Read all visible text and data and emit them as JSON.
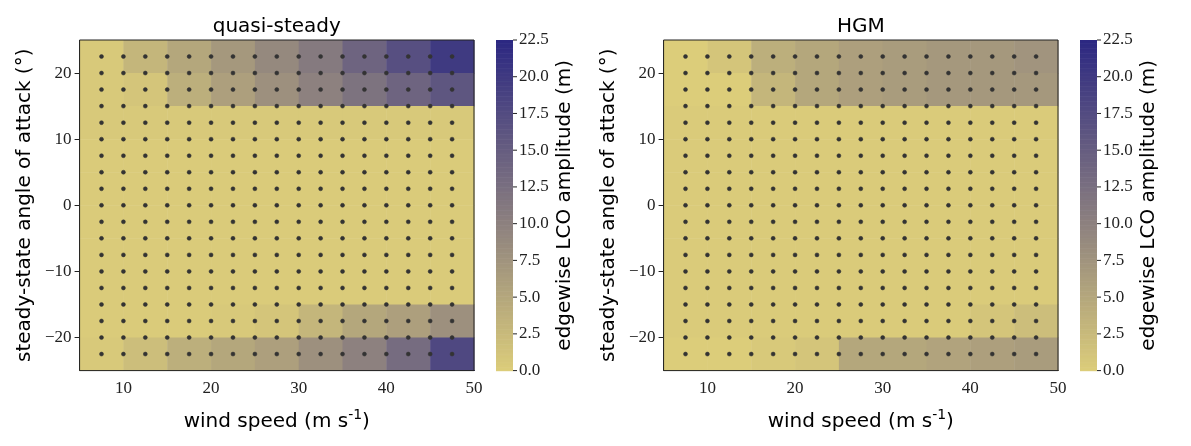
{
  "chart_data": [
    {
      "type": "heatmap",
      "title": "quasi-steady",
      "xlabel": "wind speed (m s$^{-1}$)",
      "ylabel": "steady-state angle of attack (°)",
      "clabel": "edgewise LCO amplitude (m)",
      "x": [
        7.5,
        12.5,
        17.5,
        22.5,
        27.5,
        32.5,
        37.5,
        42.5,
        47.5
      ],
      "y": [
        22.5,
        17.5,
        12.5,
        7.5,
        2.5,
        -2.5,
        -7.5,
        -12.5,
        -17.5,
        -22.5
      ],
      "xlim": [
        5,
        50
      ],
      "xticks": [
        10,
        20,
        30,
        40,
        50
      ],
      "ylim": [
        -25,
        25
      ],
      "yticks": [
        -20,
        -10,
        0,
        10,
        20
      ],
      "cells": [
        [
          0.5,
          3,
          5,
          7,
          9,
          11,
          14,
          17,
          20
        ],
        [
          0.5,
          1,
          4,
          6,
          8,
          10,
          12,
          14,
          16
        ],
        [
          0.5,
          0.5,
          0.5,
          0.5,
          0.5,
          0.5,
          0.5,
          0.5,
          0.5
        ],
        [
          0.3,
          0.3,
          0.3,
          0.3,
          0.3,
          0.3,
          0.3,
          0.3,
          0.3
        ],
        [
          0.3,
          0.3,
          0.3,
          0.3,
          0.3,
          0.3,
          0.3,
          0.3,
          0.3
        ],
        [
          0.3,
          0.3,
          0.3,
          0.3,
          0.3,
          0.3,
          0.3,
          0.3,
          0.3
        ],
        [
          0.3,
          0.3,
          0.3,
          0.3,
          0.3,
          0.3,
          0.3,
          0.3,
          0.3
        ],
        [
          0.3,
          0.3,
          0.3,
          0.3,
          0.3,
          0.3,
          0.3,
          0.3,
          0.3
        ],
        [
          0.3,
          0.3,
          0.3,
          0.5,
          1,
          3,
          5,
          6,
          8
        ],
        [
          0.5,
          2,
          4,
          5,
          6,
          8,
          10,
          13,
          18
        ]
      ],
      "clim": [
        0,
        22.5
      ],
      "cticks": [
        {
          "value": 0,
          "label": "0.0"
        },
        {
          "value": 2.5,
          "label": "2.5"
        },
        {
          "value": 5,
          "label": "5.0"
        },
        {
          "value": 7.5,
          "label": "7.5"
        },
        {
          "value": 10,
          "label": "10.0"
        },
        {
          "value": 12.5,
          "label": "12.5"
        },
        {
          "value": 15,
          "label": "15.0"
        },
        {
          "value": 17.5,
          "label": "17.5"
        },
        {
          "value": 20,
          "label": "20.0"
        },
        {
          "value": 22.5,
          "label": "22.5"
        }
      ],
      "marker": "circle",
      "series": [
        {
          "type": "scatter",
          "color": "#333333",
          "x": [
            7.5,
            10,
            12.5,
            15,
            17.5,
            20,
            22.5,
            25,
            27.5,
            30,
            32.5,
            35,
            37.5,
            40,
            42.5,
            45,
            47.5,
            7.5,
            10,
            12.5,
            15,
            17.5,
            20,
            22.5,
            25,
            27.5,
            30,
            32.5,
            35,
            37.5,
            40,
            42.5,
            45,
            47.5,
            7.5,
            10,
            12.5,
            15,
            17.5,
            20,
            22.5,
            25,
            27.5,
            30,
            32.5,
            35,
            37.5,
            40,
            42.5,
            45,
            47.5,
            7.5,
            10,
            12.5,
            15,
            17.5,
            20,
            22.5,
            25,
            27.5,
            30,
            32.5,
            35,
            37.5,
            40,
            42.5,
            45,
            47.5,
            7.5,
            10,
            12.5,
            15,
            17.5,
            20,
            22.5,
            25,
            27.5,
            30,
            32.5,
            35,
            37.5,
            40,
            42.5,
            45,
            47.5,
            7.5,
            10,
            12.5,
            15,
            17.5,
            20,
            22.5,
            25,
            27.5,
            30,
            32.5,
            35,
            37.5,
            40,
            42.5,
            45,
            47.5,
            7.5,
            10,
            12.5,
            15,
            17.5,
            20,
            22.5,
            25,
            27.5,
            30,
            32.5,
            35,
            37.5,
            40,
            42.5,
            45,
            47.5,
            7.5,
            10,
            12.5,
            15,
            17.5,
            20,
            22.5,
            25,
            27.5,
            30,
            32.5,
            35,
            37.5,
            40,
            42.5,
            45,
            47.5,
            7.5,
            10,
            12.5,
            15,
            17.5,
            20,
            22.5,
            25,
            27.5,
            30,
            32.5,
            35,
            37.5,
            40,
            42.5,
            45,
            47.5,
            7.5,
            10,
            12.5,
            15,
            17.5,
            20,
            22.5,
            25,
            27.5,
            30,
            32.5,
            35,
            37.5,
            40,
            42.5,
            45,
            47.5,
            7.5,
            10,
            12.5,
            15,
            17.5,
            20,
            22.5,
            25,
            27.5,
            30,
            32.5,
            35,
            37.5,
            40,
            42.5,
            45,
            47.5,
            7.5,
            10,
            12.5,
            15,
            17.5,
            20,
            22.5,
            25,
            27.5,
            30,
            32.5,
            35,
            37.5,
            40,
            42.5,
            45,
            47.5,
            7.5,
            10,
            12.5,
            15,
            17.5,
            20,
            22.5,
            25,
            27.5,
            30,
            32.5,
            35,
            37.5,
            40,
            42.5,
            45,
            47.5,
            7.5,
            10,
            12.5,
            15,
            17.5,
            20,
            22.5,
            25,
            27.5,
            30,
            32.5,
            35,
            37.5,
            40,
            42.5,
            45,
            47.5,
            7.5,
            10,
            12.5,
            15,
            17.5,
            20,
            22.5,
            25,
            27.5,
            30,
            32.5,
            35,
            37.5,
            40,
            42.5,
            45,
            47.5,
            7.5,
            10,
            12.5,
            15,
            17.5,
            20,
            22.5,
            25,
            27.5,
            30,
            32.5,
            35,
            37.5,
            40,
            42.5,
            45,
            47.5,
            7.5,
            10,
            12.5,
            15,
            17.5,
            20,
            22.5,
            25,
            27.5,
            30,
            32.5,
            35,
            37.5,
            40,
            42.5,
            45,
            47.5,
            7.5,
            10,
            12.5,
            15,
            17.5,
            20,
            22.5,
            25,
            27.5,
            30,
            32.5,
            35,
            37.5,
            40,
            42.5,
            45,
            47.5,
            7.5,
            10,
            12.5,
            15,
            17.5,
            20,
            22.5,
            25,
            27.5,
            30,
            32.5,
            35,
            37.5,
            40,
            42.5,
            45,
            47.5
          ],
          "values": [
            22.5,
            22.5,
            22.5,
            22.5,
            22.5,
            22.5,
            22.5,
            22.5,
            22.5,
            22.5,
            22.5,
            22.5,
            22.5,
            22.5,
            22.5,
            22.5,
            22.5,
            20,
            20,
            20,
            20,
            20,
            20,
            20,
            20,
            20,
            20,
            20,
            20,
            20,
            20,
            20,
            20,
            20,
            17.5,
            17.5,
            17.5,
            17.5,
            17.5,
            17.5,
            17.5,
            17.5,
            17.5,
            17.5,
            17.5,
            17.5,
            17.5,
            17.5,
            17.5,
            17.5,
            17.5,
            15,
            15,
            15,
            15,
            15,
            15,
            15,
            15,
            15,
            15,
            15,
            15,
            15,
            15,
            15,
            15,
            15,
            12.5,
            12.5,
            12.5,
            12.5,
            12.5,
            12.5,
            12.5,
            12.5,
            12.5,
            12.5,
            12.5,
            12.5,
            12.5,
            12.5,
            12.5,
            12.5,
            12.5,
            10,
            10,
            10,
            10,
            10,
            10,
            10,
            10,
            10,
            10,
            10,
            10,
            10,
            10,
            10,
            10,
            10,
            7.5,
            7.5,
            7.5,
            7.5,
            7.5,
            7.5,
            7.5,
            7.5,
            7.5,
            7.5,
            7.5,
            7.5,
            7.5,
            7.5,
            7.5,
            7.5,
            7.5,
            5,
            5,
            5,
            5,
            5,
            5,
            5,
            5,
            5,
            5,
            5,
            5,
            5,
            5,
            5,
            5,
            5,
            2.5,
            2.5,
            2.5,
            2.5,
            2.5,
            2.5,
            2.5,
            2.5,
            2.5,
            2.5,
            2.5,
            2.5,
            2.5,
            2.5,
            2.5,
            2.5,
            2.5,
            0,
            0,
            0,
            0,
            0,
            0,
            0,
            0,
            0,
            0,
            0,
            0,
            0,
            0,
            0,
            0,
            0,
            -2.5,
            -2.5,
            -2.5,
            -2.5,
            -2.5,
            -2.5,
            -2.5,
            -2.5,
            -2.5,
            -2.5,
            -2.5,
            -2.5,
            -2.5,
            -2.5,
            -2.5,
            -2.5,
            -2.5,
            -5,
            -5,
            -5,
            -5,
            -5,
            -5,
            -5,
            -5,
            -5,
            -5,
            -5,
            -5,
            -5,
            -5,
            -5,
            -5,
            -5,
            -7.5,
            -7.5,
            -7.5,
            -7.5,
            -7.5,
            -7.5,
            -7.5,
            -7.5,
            -7.5,
            -7.5,
            -7.5,
            -7.5,
            -7.5,
            -7.5,
            -7.5,
            -7.5,
            -7.5,
            -10,
            -10,
            -10,
            -10,
            -10,
            -10,
            -10,
            -10,
            -10,
            -10,
            -10,
            -10,
            -10,
            -10,
            -10,
            -10,
            -10,
            -12.5,
            -12.5,
            -12.5,
            -12.5,
            -12.5,
            -12.5,
            -12.5,
            -12.5,
            -12.5,
            -12.5,
            -12.5,
            -12.5,
            -12.5,
            -12.5,
            -12.5,
            -12.5,
            -12.5,
            -15,
            -15,
            -15,
            -15,
            -15,
            -15,
            -15,
            -15,
            -15,
            -15,
            -15,
            -15,
            -15,
            -15,
            -15,
            -15,
            -15,
            -17.5,
            -17.5,
            -17.5,
            -17.5,
            -17.5,
            -17.5,
            -17.5,
            -17.5,
            -17.5,
            -17.5,
            -17.5,
            -17.5,
            -17.5,
            -17.5,
            -17.5,
            -17.5,
            -17.5,
            -20,
            -20,
            -20,
            -20,
            -20,
            -20,
            -20,
            -20,
            -20,
            -20,
            -20,
            -20,
            -20,
            -20,
            -20,
            -20,
            -20,
            -22.5,
            -22.5,
            -22.5,
            -22.5,
            -22.5,
            -22.5,
            -22.5,
            -22.5,
            -22.5,
            -22.5,
            -22.5,
            -22.5,
            -22.5,
            -22.5,
            -22.5,
            -22.5,
            -22.5
          ]
        }
      ]
    },
    {
      "type": "heatmap",
      "title": "HGM",
      "xlabel": "wind speed (m s$^{-1}$)",
      "ylabel": "steady-state angle of attack (°)",
      "clabel": "edgewise LCO amplitude (m)",
      "x": [
        7.5,
        12.5,
        17.5,
        22.5,
        27.5,
        32.5,
        37.5,
        42.5,
        47.5
      ],
      "y": [
        22.5,
        17.5,
        12.5,
        7.5,
        2.5,
        -2.5,
        -7.5,
        -12.5,
        -17.5,
        -22.5
      ],
      "xlim": [
        5,
        50
      ],
      "xticks": [
        10,
        20,
        30,
        40,
        50
      ],
      "ylim": [
        -25,
        25
      ],
      "yticks": [
        -20,
        -10,
        0,
        10,
        20
      ],
      "cells": [
        [
          0,
          1,
          4,
          5,
          6,
          6.5,
          7,
          7,
          7.5
        ],
        [
          0,
          0,
          3,
          5,
          6,
          6.5,
          7,
          7,
          7
        ],
        [
          0.3,
          0.3,
          0.3,
          0.3,
          0.3,
          0.3,
          0.3,
          0.3,
          0.3
        ],
        [
          0.3,
          0.3,
          0.3,
          0.3,
          0.3,
          0.3,
          0.3,
          0.3,
          0.3
        ],
        [
          0.3,
          0.3,
          0.3,
          0.3,
          0.3,
          0.3,
          0.3,
          0.3,
          0.3
        ],
        [
          0.3,
          0.3,
          0.3,
          0.3,
          0.3,
          0.3,
          0.3,
          0.3,
          0.3
        ],
        [
          0.3,
          0.3,
          0.3,
          0.3,
          0.3,
          0.3,
          0.3,
          0.3,
          0.3
        ],
        [
          0.3,
          0.3,
          0.3,
          0.3,
          0.3,
          0.3,
          0.3,
          0.3,
          0.3
        ],
        [
          0.3,
          0.3,
          0.3,
          0.3,
          0.3,
          0.3,
          0.3,
          1,
          2
        ],
        [
          0,
          0,
          0.5,
          1,
          5,
          5,
          5.5,
          6,
          6.5
        ]
      ],
      "clim": [
        0,
        22.5
      ],
      "cticks": [
        {
          "value": 0,
          "label": "0.0"
        },
        {
          "value": 2.5,
          "label": "2.5"
        },
        {
          "value": 5,
          "label": "5.0"
        },
        {
          "value": 7.5,
          "label": "7.5"
        },
        {
          "value": 10,
          "label": "10.0"
        },
        {
          "value": 12.5,
          "label": "12.5"
        },
        {
          "value": 15,
          "label": "15.0"
        },
        {
          "value": 17.5,
          "label": "17.5"
        },
        {
          "value": 20,
          "label": "20.0"
        },
        {
          "value": 22.5,
          "label": "22.5"
        }
      ],
      "marker": "circle",
      "series": [
        {
          "type": "scatter",
          "color": "#333333",
          "x": [
            7.5,
            10,
            12.5,
            15,
            17.5,
            20,
            22.5,
            25,
            27.5,
            30,
            32.5,
            35,
            37.5,
            40,
            42.5,
            45,
            47.5,
            7.5,
            10,
            12.5,
            15,
            17.5,
            20,
            22.5,
            25,
            27.5,
            30,
            32.5,
            35,
            37.5,
            40,
            42.5,
            45,
            47.5,
            7.5,
            10,
            12.5,
            15,
            17.5,
            20,
            22.5,
            25,
            27.5,
            30,
            32.5,
            35,
            37.5,
            40,
            42.5,
            45,
            47.5,
            7.5,
            10,
            12.5,
            15,
            17.5,
            20,
            22.5,
            25,
            27.5,
            30,
            32.5,
            35,
            37.5,
            40,
            42.5,
            45,
            47.5,
            7.5,
            10,
            12.5,
            15,
            17.5,
            20,
            22.5,
            25,
            27.5,
            30,
            32.5,
            35,
            37.5,
            40,
            42.5,
            45,
            47.5,
            7.5,
            10,
            12.5,
            15,
            17.5,
            20,
            22.5,
            25,
            27.5,
            30,
            32.5,
            35,
            37.5,
            40,
            42.5,
            45,
            47.5,
            7.5,
            10,
            12.5,
            15,
            17.5,
            20,
            22.5,
            25,
            27.5,
            30,
            32.5,
            35,
            37.5,
            40,
            42.5,
            45,
            47.5,
            7.5,
            10,
            12.5,
            15,
            17.5,
            20,
            22.5,
            25,
            27.5,
            30,
            32.5,
            35,
            37.5,
            40,
            42.5,
            45,
            47.5,
            7.5,
            10,
            12.5,
            15,
            17.5,
            20,
            22.5,
            25,
            27.5,
            30,
            32.5,
            35,
            37.5,
            40,
            42.5,
            45,
            47.5,
            7.5,
            10,
            12.5,
            15,
            17.5,
            20,
            22.5,
            25,
            27.5,
            30,
            32.5,
            35,
            37.5,
            40,
            42.5,
            45,
            47.5,
            7.5,
            10,
            12.5,
            15,
            17.5,
            20,
            22.5,
            25,
            27.5,
            30,
            32.5,
            35,
            37.5,
            40,
            42.5,
            45,
            47.5,
            7.5,
            10,
            12.5,
            15,
            17.5,
            20,
            22.5,
            25,
            27.5,
            30,
            32.5,
            35,
            37.5,
            40,
            42.5,
            45,
            47.5,
            7.5,
            10,
            12.5,
            15,
            17.5,
            20,
            22.5,
            25,
            27.5,
            30,
            32.5,
            35,
            37.5,
            40,
            42.5,
            45,
            47.5,
            7.5,
            10,
            12.5,
            15,
            17.5,
            20,
            22.5,
            25,
            27.5,
            30,
            32.5,
            35,
            37.5,
            40,
            42.5,
            45,
            47.5,
            7.5,
            10,
            12.5,
            15,
            17.5,
            20,
            22.5,
            25,
            27.5,
            30,
            32.5,
            35,
            37.5,
            40,
            42.5,
            45,
            47.5,
            7.5,
            10,
            12.5,
            15,
            17.5,
            20,
            22.5,
            25,
            27.5,
            30,
            32.5,
            35,
            37.5,
            40,
            42.5,
            45,
            47.5,
            7.5,
            10,
            12.5,
            15,
            17.5,
            20,
            22.5,
            25,
            27.5,
            30,
            32.5,
            35,
            37.5,
            40,
            42.5,
            45,
            47.5,
            7.5,
            10,
            12.5,
            15,
            17.5,
            20,
            22.5,
            25,
            27.5,
            30,
            32.5,
            35,
            37.5,
            40,
            42.5,
            45,
            47.5,
            7.5,
            10,
            12.5,
            15,
            17.5,
            20,
            22.5,
            25,
            27.5,
            30,
            32.5,
            35,
            37.5,
            40,
            42.5,
            45,
            47.5
          ],
          "values": [
            22.5,
            22.5,
            22.5,
            22.5,
            22.5,
            22.5,
            22.5,
            22.5,
            22.5,
            22.5,
            22.5,
            22.5,
            22.5,
            22.5,
            22.5,
            22.5,
            22.5,
            20,
            20,
            20,
            20,
            20,
            20,
            20,
            20,
            20,
            20,
            20,
            20,
            20,
            20,
            20,
            20,
            20,
            17.5,
            17.5,
            17.5,
            17.5,
            17.5,
            17.5,
            17.5,
            17.5,
            17.5,
            17.5,
            17.5,
            17.5,
            17.5,
            17.5,
            17.5,
            17.5,
            17.5,
            15,
            15,
            15,
            15,
            15,
            15,
            15,
            15,
            15,
            15,
            15,
            15,
            15,
            15,
            15,
            15,
            15,
            12.5,
            12.5,
            12.5,
            12.5,
            12.5,
            12.5,
            12.5,
            12.5,
            12.5,
            12.5,
            12.5,
            12.5,
            12.5,
            12.5,
            12.5,
            12.5,
            12.5,
            10,
            10,
            10,
            10,
            10,
            10,
            10,
            10,
            10,
            10,
            10,
            10,
            10,
            10,
            10,
            10,
            10,
            7.5,
            7.5,
            7.5,
            7.5,
            7.5,
            7.5,
            7.5,
            7.5,
            7.5,
            7.5,
            7.5,
            7.5,
            7.5,
            7.5,
            7.5,
            7.5,
            7.5,
            5,
            5,
            5,
            5,
            5,
            5,
            5,
            5,
            5,
            5,
            5,
            5,
            5,
            5,
            5,
            5,
            5,
            2.5,
            2.5,
            2.5,
            2.5,
            2.5,
            2.5,
            2.5,
            2.5,
            2.5,
            2.5,
            2.5,
            2.5,
            2.5,
            2.5,
            2.5,
            2.5,
            2.5,
            0,
            0,
            0,
            0,
            0,
            0,
            0,
            0,
            0,
            0,
            0,
            0,
            0,
            0,
            0,
            0,
            0,
            -2.5,
            -2.5,
            -2.5,
            -2.5,
            -2.5,
            -2.5,
            -2.5,
            -2.5,
            -2.5,
            -2.5,
            -2.5,
            -2.5,
            -2.5,
            -2.5,
            -2.5,
            -2.5,
            -2.5,
            -5,
            -5,
            -5,
            -5,
            -5,
            -5,
            -5,
            -5,
            -5,
            -5,
            -5,
            -5,
            -5,
            -5,
            -5,
            -5,
            -5,
            -7.5,
            -7.5,
            -7.5,
            -7.5,
            -7.5,
            -7.5,
            -7.5,
            -7.5,
            -7.5,
            -7.5,
            -7.5,
            -7.5,
            -7.5,
            -7.5,
            -7.5,
            -7.5,
            -7.5,
            -10,
            -10,
            -10,
            -10,
            -10,
            -10,
            -10,
            -10,
            -10,
            -10,
            -10,
            -10,
            -10,
            -10,
            -10,
            -10,
            -10,
            -12.5,
            -12.5,
            -12.5,
            -12.5,
            -12.5,
            -12.5,
            -12.5,
            -12.5,
            -12.5,
            -12.5,
            -12.5,
            -12.5,
            -12.5,
            -12.5,
            -12.5,
            -12.5,
            -12.5,
            -15,
            -15,
            -15,
            -15,
            -15,
            -15,
            -15,
            -15,
            -15,
            -15,
            -15,
            -15,
            -15,
            -15,
            -15,
            -15,
            -15,
            -17.5,
            -17.5,
            -17.5,
            -17.5,
            -17.5,
            -17.5,
            -17.5,
            -17.5,
            -17.5,
            -17.5,
            -17.5,
            -17.5,
            -17.5,
            -17.5,
            -17.5,
            -17.5,
            -17.5,
            -20,
            -20,
            -20,
            -20,
            -20,
            -20,
            -20,
            -20,
            -20,
            -20,
            -20,
            -20,
            -20,
            -20,
            -20,
            -20,
            -20,
            -22.5,
            -22.5,
            -22.5,
            -22.5,
            -22.5,
            -22.5,
            -22.5,
            -22.5,
            -22.5,
            -22.5,
            -22.5,
            -22.5,
            -22.5,
            -22.5,
            -22.5,
            -22.5,
            -22.5
          ]
        }
      ]
    }
  ]
}
